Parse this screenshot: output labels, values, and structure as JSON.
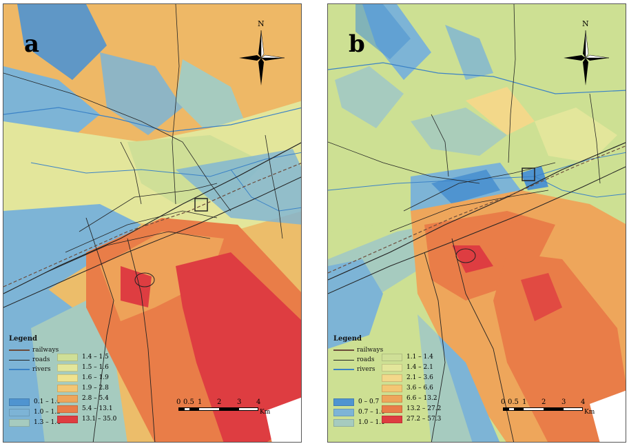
{
  "panels": [
    {
      "letter": "a",
      "north": "N",
      "legend": {
        "title": "Legend",
        "lines": [
          "railways",
          "roads",
          "rivers"
        ],
        "classes": [
          {
            "label": "0.1 – 1.0",
            "color": "#4f94d0"
          },
          {
            "label": "1.0 – 1.3",
            "color": "#7db4d6"
          },
          {
            "label": "1.3 – 1.4",
            "color": "#a6cbbf"
          },
          {
            "label": "1.4 – 1.5",
            "color": "#cfdf97"
          },
          {
            "label": "1.5 – 1.6",
            "color": "#e3e69b"
          },
          {
            "label": "1.6 – 1.9",
            "color": "#f0e38f"
          },
          {
            "label": "1.9 – 2.8",
            "color": "#f3c774"
          },
          {
            "label": "2.8 – 5.4",
            "color": "#eea65b"
          },
          {
            "label": "5.4 – 13.1",
            "color": "#e97d48"
          },
          {
            "label": "13.1 – 35.0",
            "color": "#de3d41"
          }
        ]
      },
      "scale": {
        "ticks": [
          "0",
          "0.5",
          "1",
          "2",
          "3",
          "4"
        ],
        "unit": "Km"
      }
    },
    {
      "letter": "b",
      "north": "N",
      "legend": {
        "title": "Legend",
        "lines": [
          "railways",
          "roads",
          "rivers"
        ],
        "classes": [
          {
            "label": "0 – 0.7",
            "color": "#4f94d0"
          },
          {
            "label": "0.7 – 1.0",
            "color": "#7db4d6"
          },
          {
            "label": "1.0 – 1.1",
            "color": "#a6cbbf"
          },
          {
            "label": "1.1 – 1.4",
            "color": "#cfdf97"
          },
          {
            "label": "1.4 – 2.1",
            "color": "#e3e69b"
          },
          {
            "label": "2.1 – 3.6",
            "color": "#f3d88a"
          },
          {
            "label": "3.6 – 6.6",
            "color": "#f3c774"
          },
          {
            "label": "6.6 – 13.2",
            "color": "#eea65b"
          },
          {
            "label": "13.2 – 27.2",
            "color": "#e97d48"
          },
          {
            "label": "27.2 – 57.3",
            "color": "#de3d41"
          }
        ]
      },
      "scale": {
        "ticks": [
          "0",
          "0.5",
          "1",
          "2",
          "3",
          "4"
        ],
        "unit": "Km"
      }
    }
  ],
  "colors": {
    "railways": "#6b4a3a",
    "roads": "#222222",
    "rivers": "#3b82c6"
  }
}
